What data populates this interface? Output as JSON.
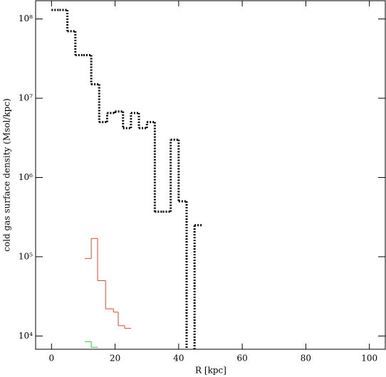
{
  "chart_data": {
    "type": "step",
    "xlabel": "R [kpc]",
    "ylabel": "cold gas surface density (Msol/kpc)",
    "xlim": [
      -5,
      105
    ],
    "xticks": [
      0,
      20,
      40,
      60,
      80,
      100
    ],
    "ylim": [
      6800,
      170000000
    ],
    "log_y": true,
    "yticks": [
      {
        "value": 10000,
        "label": "10⁴"
      },
      {
        "value": 100000,
        "label": "10⁵"
      },
      {
        "value": 1000000,
        "label": "10⁶"
      },
      {
        "value": 10000000,
        "label": "10⁷"
      },
      {
        "value": 100000000,
        "label": "10⁸"
      }
    ],
    "series": [
      {
        "color": "#000000",
        "dash": "dotted",
        "width": 3,
        "bins": [
          0,
          2.5,
          5,
          7.5,
          10,
          12.5,
          15,
          17.5,
          20,
          22.5,
          25,
          27.5,
          30,
          32.5,
          35,
          37.5,
          40,
          42.5,
          45,
          47.5
        ],
        "values": [
          130000000,
          130000000,
          70000000,
          35000000,
          35000000,
          15000000,
          5000000,
          6500000,
          6800000,
          4200000,
          6500000,
          4200000,
          5000000,
          370000,
          370000,
          3000000,
          500000,
          null,
          250000
        ]
      },
      {
        "color": "#e8452a",
        "dash": "solid",
        "width": 1,
        "bins": [
          10.5,
          12.5,
          14.5,
          17,
          19.5,
          21,
          23,
          25
        ],
        "values": [
          95000,
          170000,
          50000,
          22000,
          20000,
          13500,
          12500
        ]
      },
      {
        "color": "#22cc22",
        "dash": "solid",
        "width": 1,
        "bins": [
          10.5,
          12.5,
          14.5
        ],
        "values": [
          8500,
          7200
        ]
      }
    ]
  }
}
